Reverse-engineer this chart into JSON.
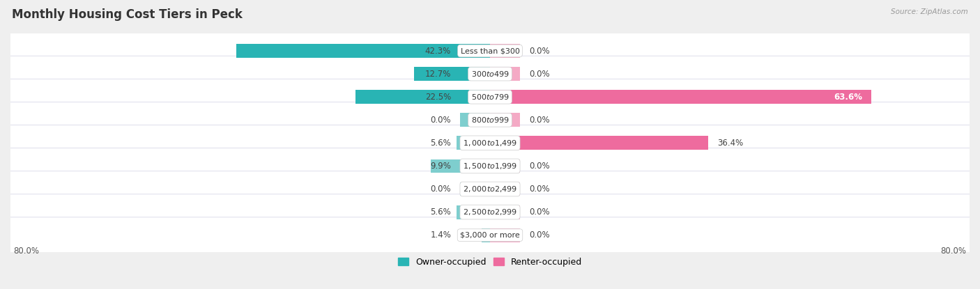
{
  "title": "Monthly Housing Cost Tiers in Peck",
  "source": "Source: ZipAtlas.com",
  "categories": [
    "Less than $300",
    "$300 to $499",
    "$500 to $799",
    "$800 to $999",
    "$1,000 to $1,499",
    "$1,500 to $1,999",
    "$2,000 to $2,499",
    "$2,500 to $2,999",
    "$3,000 or more"
  ],
  "owner_values": [
    42.3,
    12.7,
    22.5,
    0.0,
    5.6,
    9.9,
    0.0,
    5.6,
    1.4
  ],
  "renter_values": [
    0.0,
    0.0,
    63.6,
    0.0,
    36.4,
    0.0,
    0.0,
    0.0,
    0.0
  ],
  "owner_color_strong": "#29b4b4",
  "owner_color_light": "#7ecece",
  "renter_color_strong": "#ee6b9e",
  "renter_color_light": "#f4aac5",
  "axis_limit": 80.0,
  "bg_color": "#efefef",
  "row_bg_color": "#f7f7fb",
  "legend_owner": "Owner-occupied",
  "legend_renter": "Renter-occupied",
  "x_left_label": "80.0%",
  "x_right_label": "80.0%",
  "stub_size": 5.0,
  "title_fontsize": 12,
  "label_fontsize": 8.5,
  "cat_fontsize": 8.0
}
